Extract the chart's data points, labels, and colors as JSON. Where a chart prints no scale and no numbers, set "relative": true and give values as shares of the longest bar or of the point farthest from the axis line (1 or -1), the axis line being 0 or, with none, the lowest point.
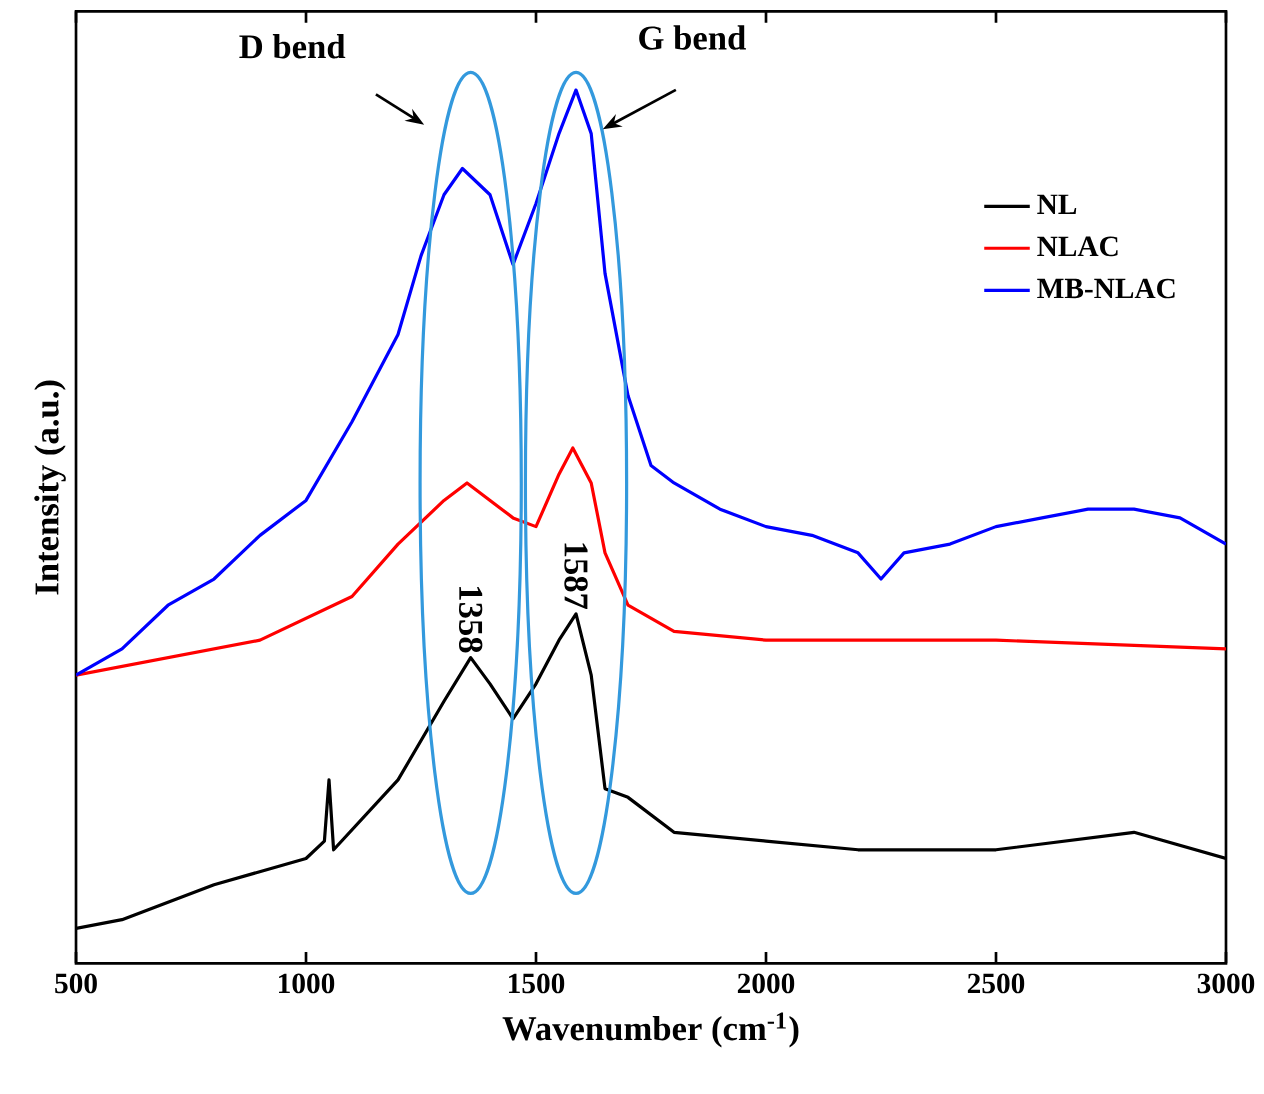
{
  "chart_data": {
    "type": "line",
    "relative": true,
    "xlabel": "Wavenumber (cm$^{-1}$)",
    "ylabel": "Intensity (a.u.)",
    "xlim": [
      500,
      3000
    ],
    "xticks": [
      500,
      1000,
      1500,
      2000,
      2500,
      3000
    ],
    "tick_labels": "x",
    "legend": "top right",
    "marker": "none",
    "line_style": "solid",
    "annotations": [
      "D bend",
      "G bend",
      {
        "text": "1358",
        "x": 1358,
        "y": 0.35
      },
      {
        "text": "1587",
        "x": 1587,
        "y": 0.4
      }
    ],
    "series": [
      {
        "name": "NL",
        "color": "#000000",
        "x": [
          500,
          600,
          800,
          1000,
          1040,
          1050,
          1060,
          1200,
          1300,
          1358,
          1400,
          1450,
          1500,
          1550,
          1587,
          1620,
          1650,
          1700,
          1800,
          2000,
          2200,
          2500,
          2800,
          3000
        ],
        "values": [
          0.04,
          0.05,
          0.09,
          0.12,
          0.14,
          0.21,
          0.13,
          0.21,
          0.3,
          0.35,
          0.32,
          0.28,
          0.32,
          0.37,
          0.4,
          0.33,
          0.2,
          0.19,
          0.15,
          0.14,
          0.13,
          0.13,
          0.15,
          0.12
        ]
      },
      {
        "name": "NLAC",
        "color": "#ff0000",
        "x": [
          500,
          700,
          900,
          1100,
          1200,
          1300,
          1350,
          1450,
          1500,
          1550,
          1580,
          1620,
          1650,
          1700,
          1800,
          2000,
          2500,
          3000
        ],
        "values": [
          0.33,
          0.35,
          0.37,
          0.42,
          0.48,
          0.53,
          0.55,
          0.51,
          0.5,
          0.56,
          0.59,
          0.55,
          0.47,
          0.41,
          0.38,
          0.37,
          0.37,
          0.36
        ]
      },
      {
        "name": "MB-NLAC",
        "color": "#0000ff",
        "x": [
          500,
          600,
          700,
          800,
          900,
          1000,
          1100,
          1200,
          1250,
          1300,
          1340,
          1400,
          1450,
          1500,
          1550,
          1587,
          1620,
          1650,
          1700,
          1750,
          1800,
          1900,
          2000,
          2100,
          2200,
          2250,
          2300,
          2400,
          2500,
          2600,
          2700,
          2800,
          2900,
          3000
        ],
        "values": [
          0.33,
          0.36,
          0.41,
          0.44,
          0.49,
          0.53,
          0.62,
          0.72,
          0.81,
          0.88,
          0.91,
          0.88,
          0.8,
          0.87,
          0.95,
          1.0,
          0.95,
          0.79,
          0.65,
          0.57,
          0.55,
          0.52,
          0.5,
          0.49,
          0.47,
          0.44,
          0.47,
          0.48,
          0.5,
          0.51,
          0.52,
          0.52,
          0.51,
          0.48
        ]
      }
    ]
  }
}
